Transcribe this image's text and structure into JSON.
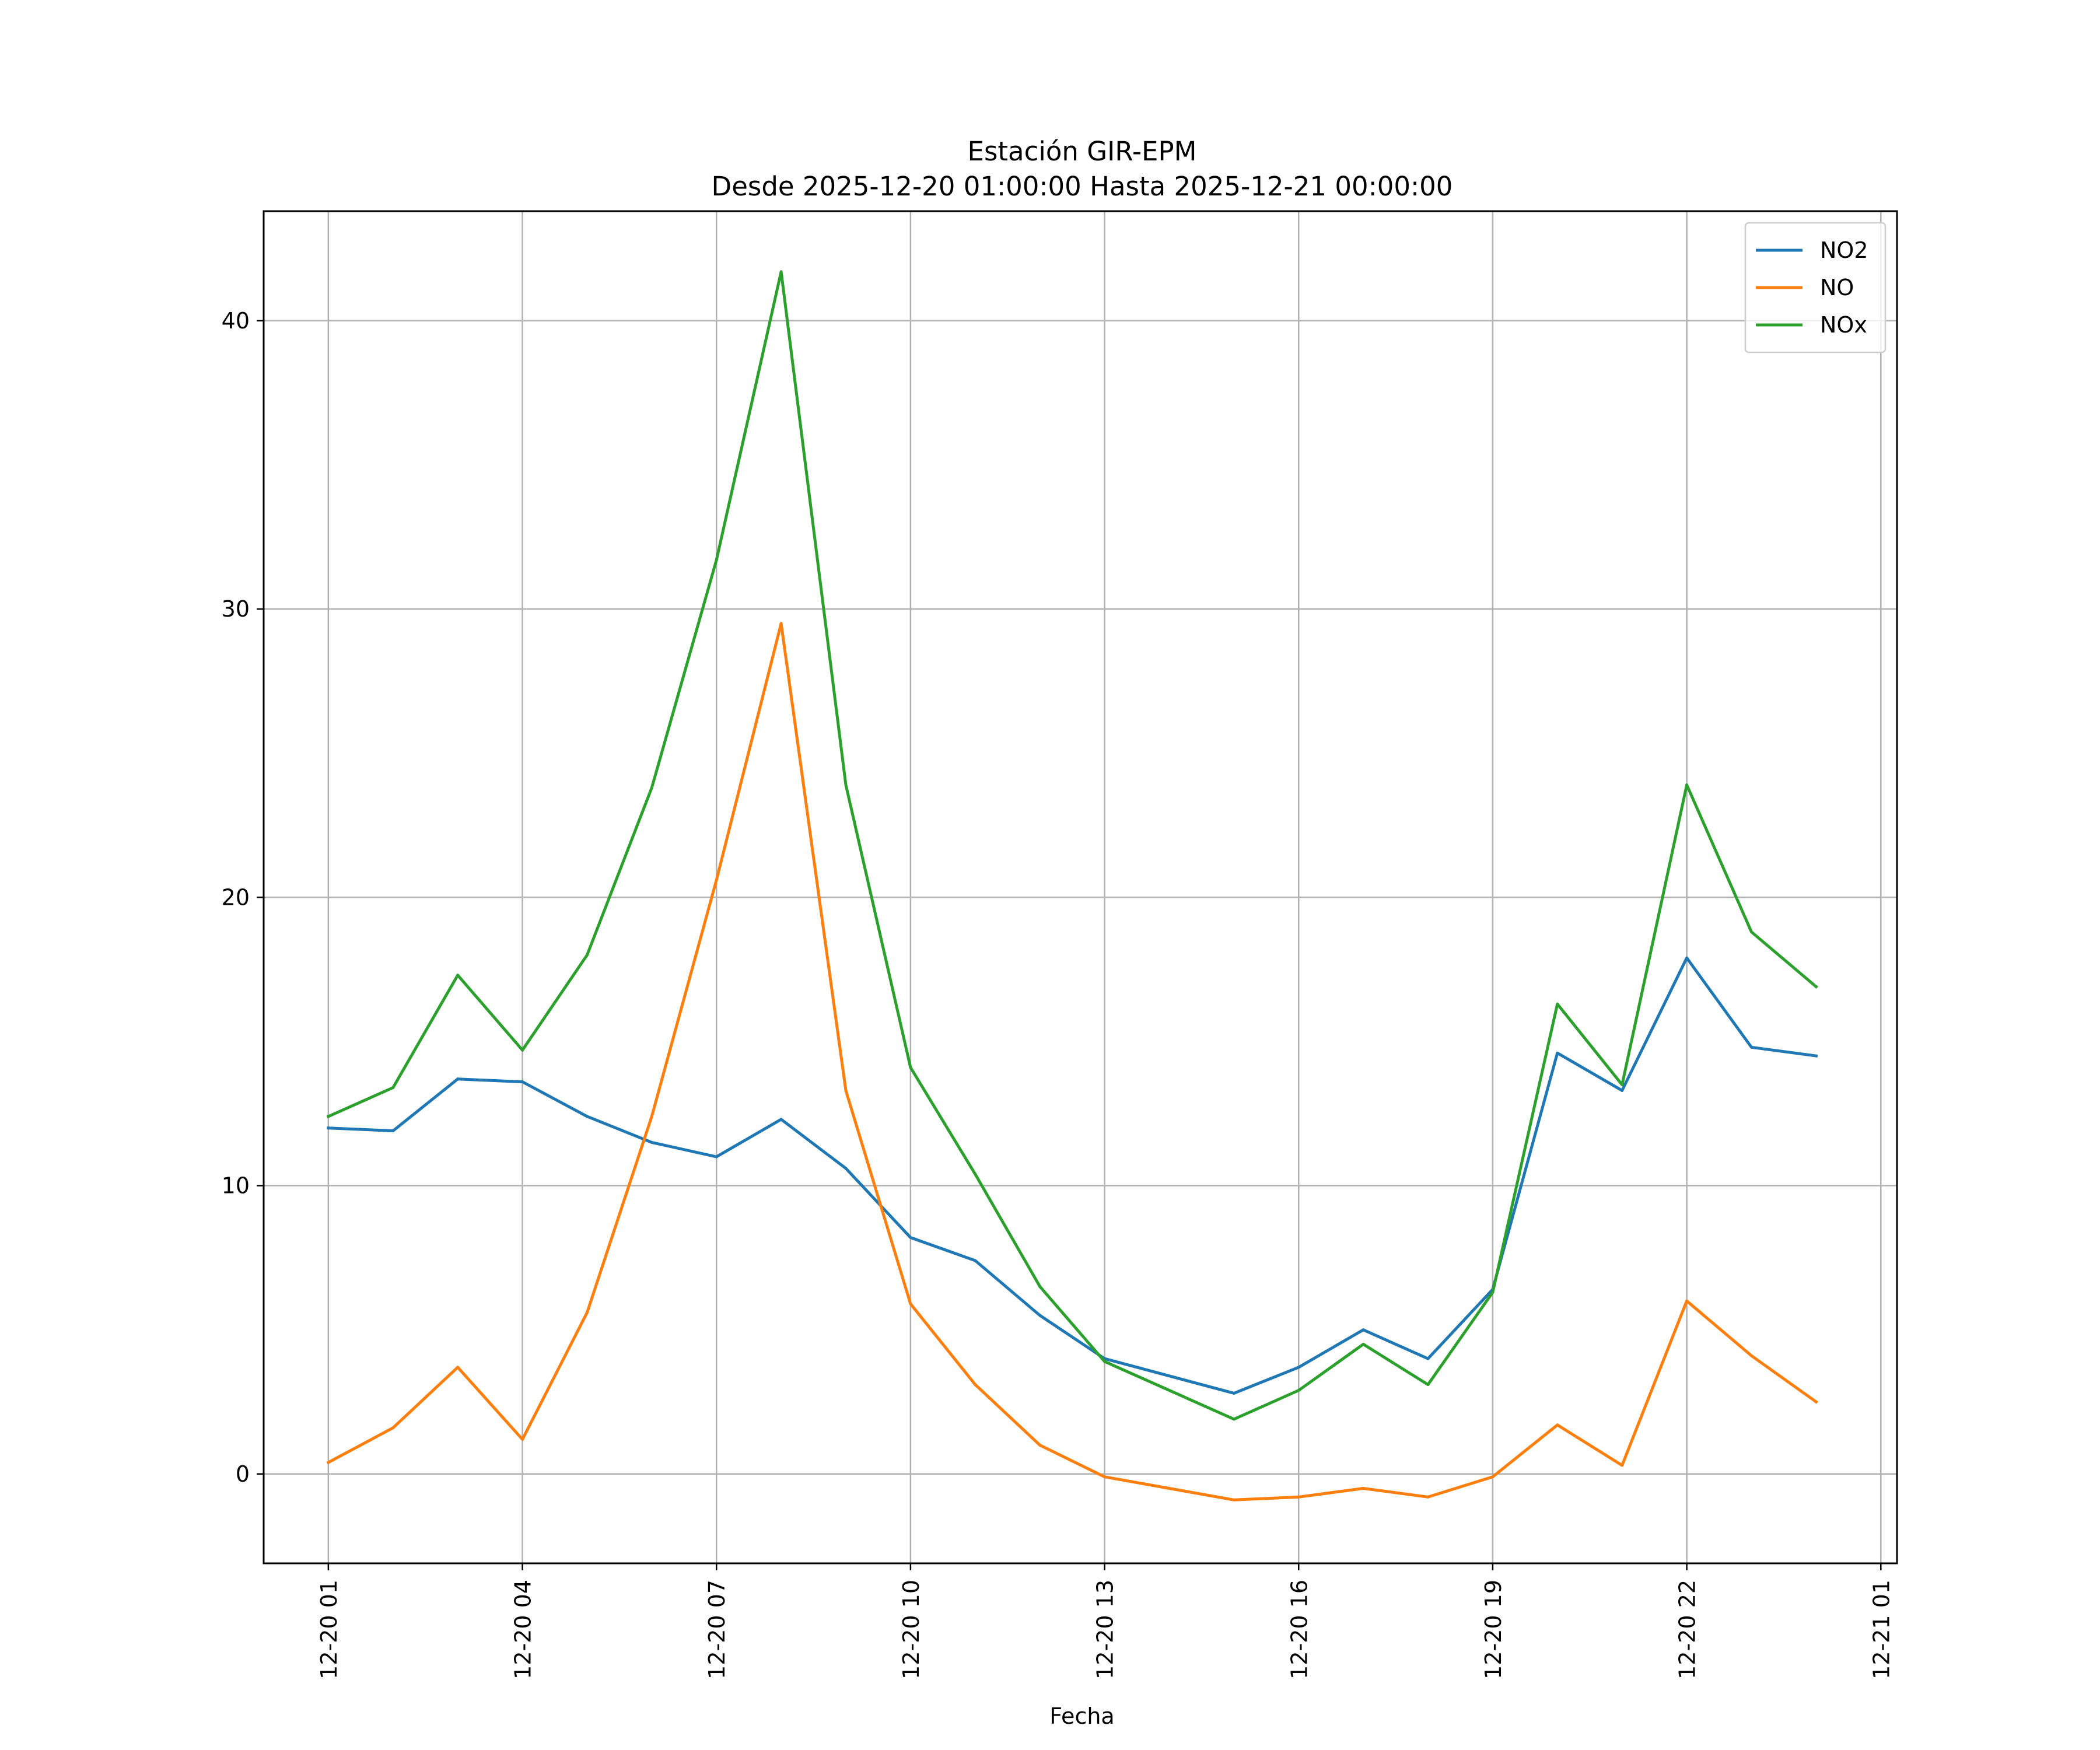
{
  "chart_data": {
    "type": "line",
    "title": "Estación GIR-EPM",
    "subtitle": "Desde 2025-12-20 01:00:00 Hasta 2025-12-21 00:00:00",
    "xlabel": "Fecha",
    "ylabel": "",
    "x": [
      "2025-12-20 01:00",
      "2025-12-20 02:00",
      "2025-12-20 03:00",
      "2025-12-20 04:00",
      "2025-12-20 05:00",
      "2025-12-20 06:00",
      "2025-12-20 07:00",
      "2025-12-20 08:00",
      "2025-12-20 09:00",
      "2025-12-20 10:00",
      "2025-12-20 11:00",
      "2025-12-20 12:00",
      "2025-12-20 13:00",
      "2025-12-20 15:00",
      "2025-12-20 16:00",
      "2025-12-20 17:00",
      "2025-12-20 18:00",
      "2025-12-20 19:00",
      "2025-12-20 20:00",
      "2025-12-20 21:00",
      "2025-12-20 22:00",
      "2025-12-20 23:00",
      "2025-12-21 00:00"
    ],
    "x_ticks": [
      "12-20 01",
      "12-20 04",
      "12-20 07",
      "12-20 10",
      "12-20 13",
      "12-20 16",
      "12-20 19",
      "12-20 22",
      "12-21 01"
    ],
    "xlim": [
      "2025-12-20 00:00",
      "2025-12-21 01:15"
    ],
    "y_ticks": [
      0,
      10,
      20,
      30,
      40
    ],
    "ylim": [
      -3.1,
      43.8
    ],
    "grid": true,
    "legend_position": "top-right",
    "series": [
      {
        "name": "NO2",
        "color": "#1f77b4",
        "values": [
          12.0,
          11.9,
          13.7,
          13.6,
          12.4,
          11.5,
          11.0,
          12.3,
          10.6,
          8.2,
          7.4,
          5.5,
          4.0,
          2.8,
          3.7,
          5.0,
          4.0,
          6.4,
          14.6,
          13.3,
          17.9,
          14.8,
          14.5
        ]
      },
      {
        "name": "NO",
        "color": "#ff7f0e",
        "values": [
          0.4,
          1.6,
          3.7,
          1.2,
          5.6,
          12.4,
          20.6,
          29.5,
          13.3,
          5.9,
          3.1,
          1.0,
          -0.1,
          -0.9,
          -0.8,
          -0.5,
          -0.8,
          -0.1,
          1.7,
          0.3,
          6.0,
          4.1,
          2.5
        ]
      },
      {
        "name": "NOx",
        "color": "#2ca02c",
        "values": [
          12.4,
          13.4,
          17.3,
          14.7,
          18.0,
          23.8,
          31.7,
          41.7,
          23.9,
          14.1,
          10.4,
          6.5,
          3.9,
          1.9,
          2.9,
          4.5,
          3.1,
          6.3,
          16.3,
          13.5,
          23.9,
          18.8,
          16.9
        ]
      }
    ]
  }
}
